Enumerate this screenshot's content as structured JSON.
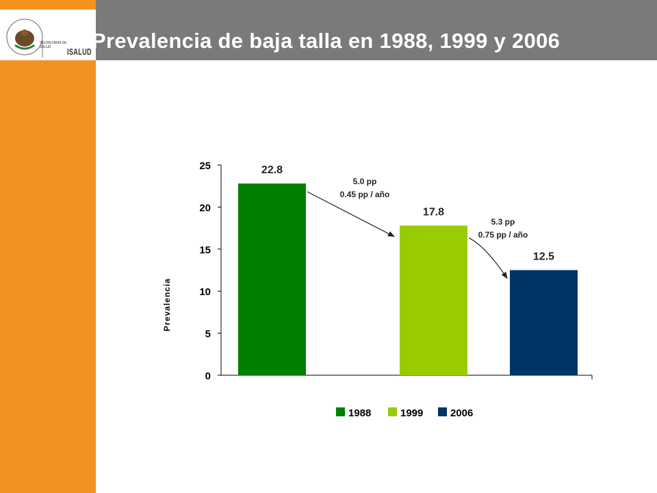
{
  "header": {
    "title": "Prevalencia de baja talla en 1988, 1999 y 2006",
    "logo": {
      "seal_text": "ESTADOS UNIDOS MEXICANOS",
      "ministry": "SECRETARÍA DE SALUD",
      "brand": "ISALUD"
    }
  },
  "colors": {
    "sidebar": "#F39221",
    "header": "#7A7A7A",
    "bar_1988": "#008000",
    "bar_1999": "#99CC00",
    "bar_2006": "#003366"
  },
  "chart_data": {
    "type": "bar",
    "title": "",
    "xlabel": "",
    "ylabel": "Prevalencia",
    "ylim": [
      0,
      25
    ],
    "yticks": [
      0,
      5,
      10,
      15,
      20,
      25
    ],
    "categories": [
      "1988",
      "1999",
      "2006"
    ],
    "values": [
      22.8,
      17.8,
      12.5
    ],
    "value_labels": [
      "22.8",
      "17.8",
      "12.5"
    ],
    "colors": [
      "#008000",
      "#99CC00",
      "#003366"
    ],
    "legend": {
      "position": "bottom",
      "entries": [
        "1988",
        "1999",
        "2006"
      ]
    },
    "annotations": [
      {
        "line1": "5.0 pp",
        "line2": "0.45 pp / año",
        "from": "1988",
        "to": "1999"
      },
      {
        "line1": "5.3 pp",
        "line2": "0.75 pp / año",
        "from": "1999",
        "to": "2006"
      }
    ],
    "grid": false
  }
}
